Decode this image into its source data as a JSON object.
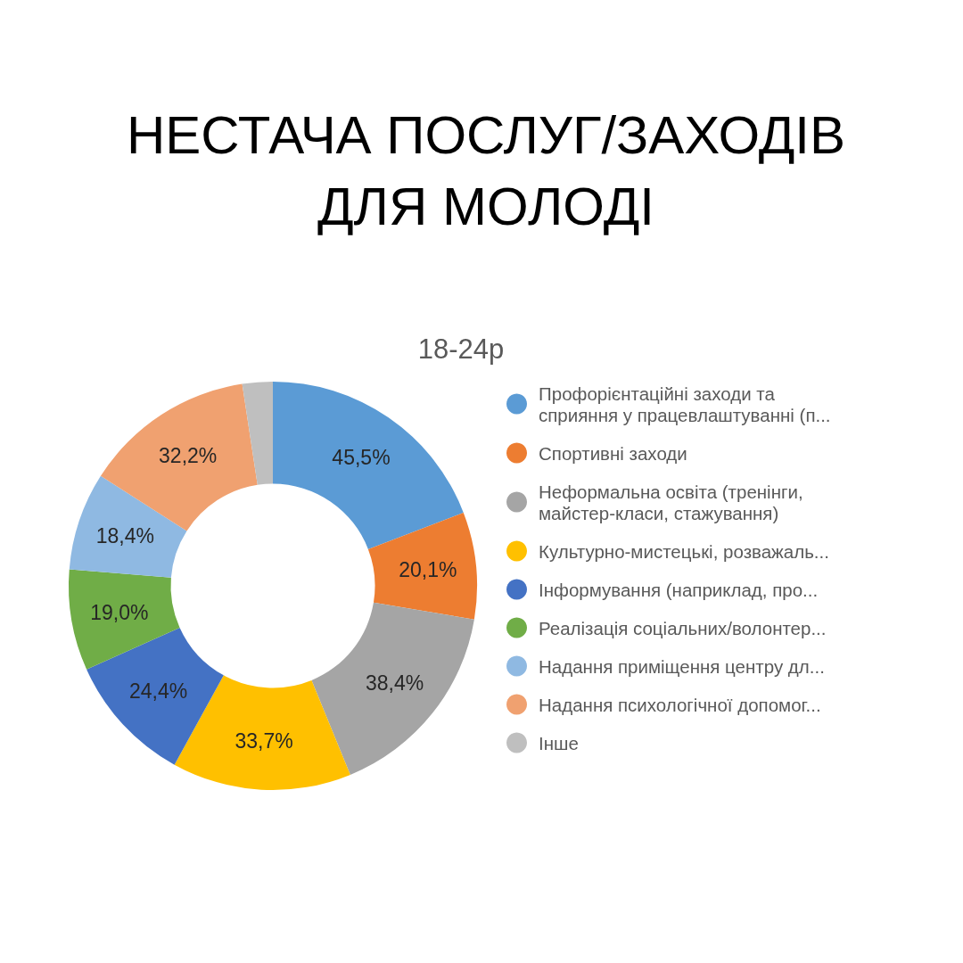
{
  "chart_data": {
    "type": "donut",
    "title": "НЕСТАЧА ПОСЛУГ/ЗАХОДІВ ДЛЯ МОЛОДІ",
    "subtitle": "18-24р",
    "categories": [
      "Профорієнтаційні заходи та сприяння у працевлаштуванні (п...",
      "Спортивні заходи",
      "Неформальна освіта (тренінги, майстер-класи, стажування)",
      "Культурно-мистецькі, розважаль...",
      "Інформування (наприклад, про...",
      "Реалізація соціальних/волонтер...",
      "Надання приміщення центру дл...",
      "Надання психологічної допомог...",
      "Інше"
    ],
    "values": [
      45.5,
      20.1,
      38.4,
      33.7,
      24.4,
      19.0,
      18.4,
      32.2,
      5.7
    ],
    "colors": [
      "#5b9bd5",
      "#ed7d31",
      "#a5a5a5",
      "#ffc000",
      "#4472c4",
      "#70ad47",
      "#8fb9e2",
      "#f0a170",
      "#bfbfbf"
    ],
    "value_labels": [
      "45,5%",
      "20,1%",
      "38,4%",
      "33,7%",
      "24,4%",
      "19,0%",
      "18,4%",
      "32,2%",
      null
    ],
    "legend": "right"
  }
}
